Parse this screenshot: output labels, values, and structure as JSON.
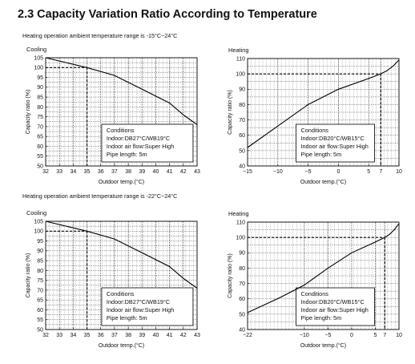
{
  "page": {
    "heading": "2.3 Capacity Variation Ratio According to Temperature",
    "notes": [
      "Heating operation ambient temperature range is -15°C~24°C",
      "Heating operation ambient temperature range is -22°C~24°C"
    ]
  },
  "chart_data": [
    {
      "type": "line",
      "title": "Cooling",
      "xlabel": "Outdoor temp.(°C)",
      "ylabel": "Capacity ratio (%)",
      "xlim": [
        32,
        43
      ],
      "ylim": [
        50,
        105
      ],
      "xticks": [
        32,
        33,
        34,
        35,
        36,
        37,
        38,
        39,
        40,
        41,
        42,
        43
      ],
      "yticks": [
        50,
        55,
        60,
        65,
        70,
        75,
        80,
        85,
        90,
        95,
        100,
        105
      ],
      "grid": true,
      "x": [
        32,
        35,
        37,
        39,
        41,
        42,
        43
      ],
      "y": [
        105,
        100,
        96,
        89,
        82,
        76,
        71
      ],
      "ref_line": {
        "x": 35,
        "y": 100
      },
      "conditions": [
        "Conditions",
        "Indoor:DB27°C/WB19°C",
        "Indoor air flow:Super High",
        "Pipe length: 5m"
      ]
    },
    {
      "type": "line",
      "title": "Heating",
      "xlabel": "Outdoor temp.(°C)",
      "ylabel": "Capacity ratio (%)",
      "xlim": [
        -15,
        10
      ],
      "ylim": [
        40,
        110
      ],
      "xticks": [
        -15,
        -10,
        -5,
        0,
        5,
        7,
        10
      ],
      "yticks": [
        40,
        50,
        60,
        70,
        80,
        90,
        100,
        110
      ],
      "grid": true,
      "x": [
        -15,
        -10,
        -5,
        0,
        5,
        7,
        8,
        9,
        10
      ],
      "y": [
        52,
        66,
        80,
        90,
        97,
        100,
        102,
        105,
        109
      ],
      "ref_line": {
        "x": 7,
        "y": 100
      },
      "conditions": [
        "Conditions",
        "Indoor:DB20°C/WB15°C",
        "Indoor air flow:Super High",
        "Pipe length: 5m"
      ]
    },
    {
      "type": "line",
      "title": "Cooling",
      "xlabel": "Outdoor temp.(°C)",
      "ylabel": "Capacity ratio (%)",
      "xlim": [
        32,
        43
      ],
      "ylim": [
        50,
        105
      ],
      "xticks": [
        32,
        33,
        34,
        35,
        36,
        37,
        38,
        39,
        40,
        41,
        42,
        43
      ],
      "yticks": [
        50,
        55,
        60,
        65,
        70,
        75,
        80,
        85,
        90,
        95,
        100,
        105
      ],
      "grid": true,
      "x": [
        32,
        35,
        37,
        39,
        41,
        42,
        43
      ],
      "y": [
        105,
        100,
        96,
        89,
        82,
        76,
        71
      ],
      "ref_line": {
        "x": 35,
        "y": 100
      },
      "conditions": [
        "Conditions",
        "Indoor:DB27°C/WB19°C",
        "Indoor air flow:Super High",
        "Pipe length: 5m"
      ]
    },
    {
      "type": "line",
      "title": "Heating",
      "xlabel": "Outdoor temp.(°C)",
      "ylabel": "Capacity ratio (%)",
      "xlim": [
        -22,
        10
      ],
      "ylim": [
        40,
        110
      ],
      "xticks": [
        -22,
        -10,
        -5,
        0,
        5,
        7,
        10
      ],
      "yticks": [
        40,
        50,
        60,
        70,
        80,
        90,
        100,
        110
      ],
      "grid": true,
      "x": [
        -22,
        -15,
        -10,
        -5,
        0,
        5,
        7,
        8,
        9,
        10
      ],
      "y": [
        51,
        61,
        69,
        80,
        90,
        97,
        100,
        102,
        105,
        109
      ],
      "ref_line": {
        "x": 7,
        "y": 100
      },
      "conditions": [
        "Conditions",
        "Indoor:DB20°C/WB15°C",
        "Indoor air flow:Super High",
        "Pipe length: 5m"
      ]
    }
  ]
}
